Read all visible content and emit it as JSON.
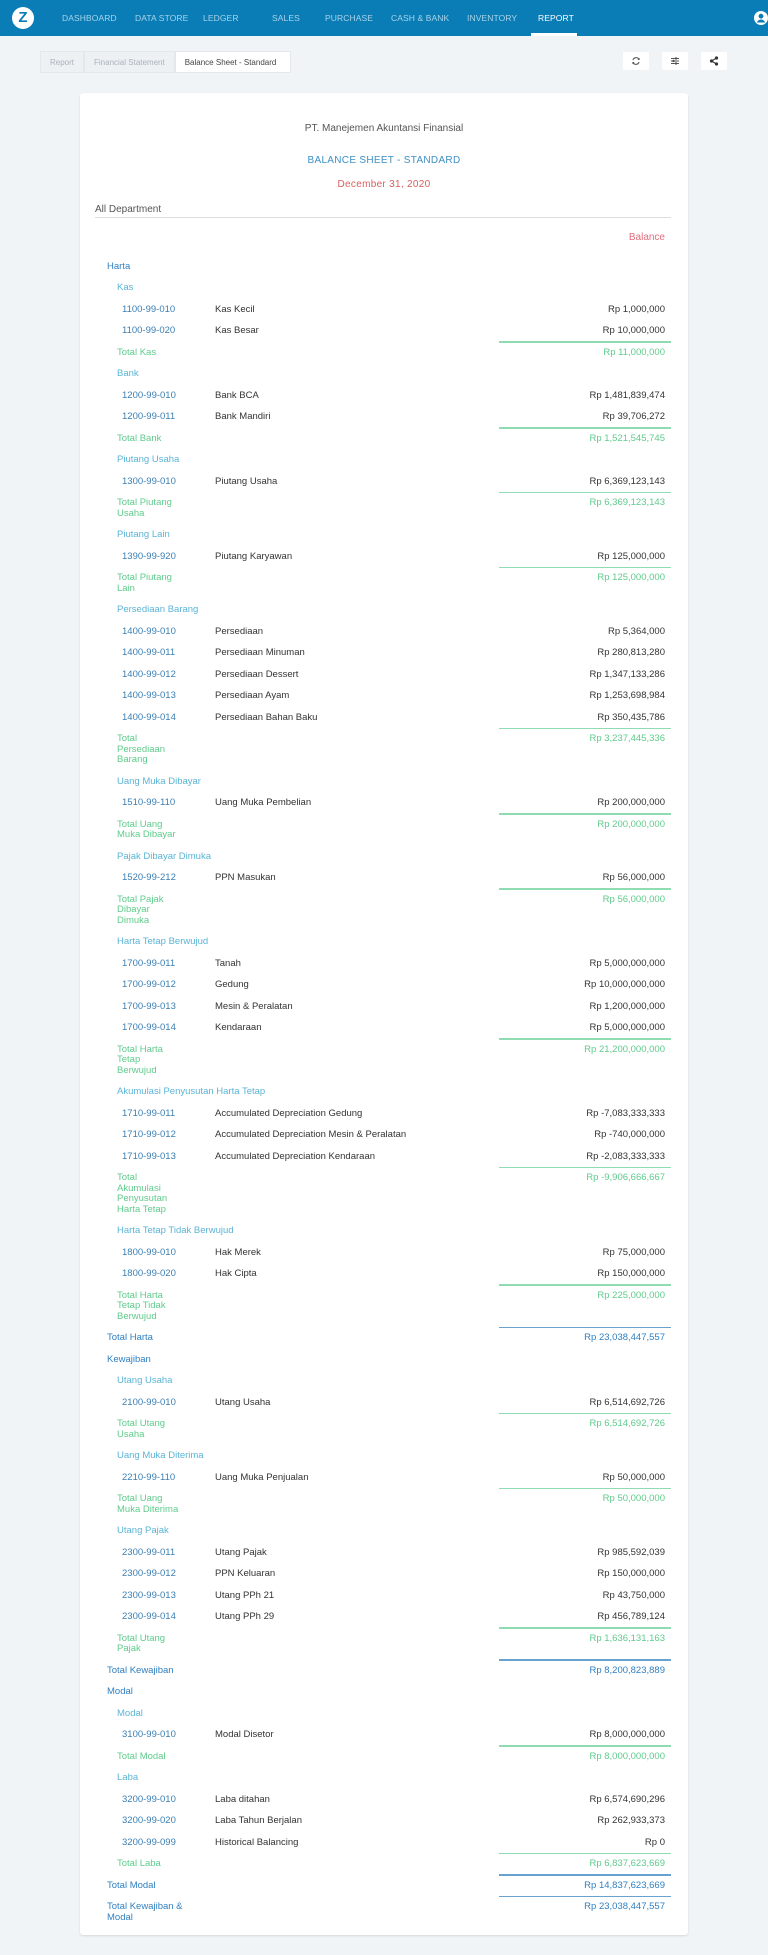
{
  "nav": {
    "logo": "Z",
    "items": [
      "DASHBOARD",
      "DATA STORE",
      "LEDGER",
      "SALES",
      "PURCHASE",
      "CASH & BANK",
      "INVENTORY",
      "REPORT"
    ],
    "active": "REPORT"
  },
  "breadcrumb": [
    "Report",
    "Financial Statement",
    "Balance Sheet - Standard"
  ],
  "toolbar": {
    "refresh_icon": "refresh-icon",
    "filter_icon": "filter-sliders-icon",
    "share_icon": "share-icon"
  },
  "report": {
    "company": "PT. Manejemen Akuntansi Finansial",
    "title": "BALANCE SHEET - STANDARD",
    "date": "December 31, 2020",
    "department": "All Department",
    "column_header": "Balance"
  },
  "colors": {
    "header": "#0a7db6",
    "group": "#2f7fc1",
    "subgroup": "#5ab4d6",
    "subtotal": "#5fcb8c",
    "date": "#d9605f"
  },
  "rows": [
    {
      "t": "g1",
      "label": "Harta"
    },
    {
      "t": "g2",
      "label": "Kas"
    },
    {
      "t": "it",
      "code": "1100-99-010",
      "name": "Kas Kecil",
      "amount": "Rp 1,000,000"
    },
    {
      "t": "it",
      "code": "1100-99-020",
      "name": "Kas Besar",
      "amount": "Rp 10,000,000"
    },
    {
      "t": "st",
      "label": "Total Kas",
      "amount": "Rp 11,000,000"
    },
    {
      "t": "g2",
      "label": "Bank"
    },
    {
      "t": "it",
      "code": "1200-99-010",
      "name": "Bank BCA",
      "amount": "Rp 1,481,839,474"
    },
    {
      "t": "it",
      "code": "1200-99-011",
      "name": "Bank Mandiri",
      "amount": "Rp 39,706,272"
    },
    {
      "t": "st",
      "label": "Total Bank",
      "amount": "Rp 1,521,545,745"
    },
    {
      "t": "g2",
      "label": "Piutang Usaha"
    },
    {
      "t": "it",
      "code": "1300-99-010",
      "name": "Piutang Usaha",
      "amount": "Rp 6,369,123,143"
    },
    {
      "t": "st",
      "label": "Total Piutang Usaha",
      "amount": "Rp 6,369,123,143"
    },
    {
      "t": "g2",
      "label": "Piutang Lain"
    },
    {
      "t": "it",
      "code": "1390-99-920",
      "name": "Piutang Karyawan",
      "amount": "Rp 125,000,000"
    },
    {
      "t": "st",
      "label": "Total Piutang Lain",
      "amount": "Rp 125,000,000"
    },
    {
      "t": "g2",
      "label": "Persediaan Barang"
    },
    {
      "t": "it",
      "code": "1400-99-010",
      "name": "Persediaan",
      "amount": "Rp 5,364,000"
    },
    {
      "t": "it",
      "code": "1400-99-011",
      "name": "Persediaan Minuman",
      "amount": "Rp 280,813,280"
    },
    {
      "t": "it",
      "code": "1400-99-012",
      "name": "Persediaan Dessert",
      "amount": "Rp 1,347,133,286"
    },
    {
      "t": "it",
      "code": "1400-99-013",
      "name": "Persediaan Ayam",
      "amount": "Rp 1,253,698,984"
    },
    {
      "t": "it",
      "code": "1400-99-014",
      "name": "Persediaan Bahan Baku",
      "amount": "Rp 350,435,786"
    },
    {
      "t": "st",
      "label": "Total Persediaan Barang",
      "amount": "Rp 3,237,445,336"
    },
    {
      "t": "g2",
      "label": "Uang Muka Dibayar"
    },
    {
      "t": "it",
      "code": "1510-99-110",
      "name": "Uang Muka Pembelian",
      "amount": "Rp 200,000,000"
    },
    {
      "t": "st",
      "label": "Total Uang Muka Dibayar",
      "amount": "Rp 200,000,000"
    },
    {
      "t": "g2",
      "label": "Pajak Dibayar Dimuka"
    },
    {
      "t": "it",
      "code": "1520-99-212",
      "name": "PPN Masukan",
      "amount": "Rp 56,000,000"
    },
    {
      "t": "st",
      "label": "Total Pajak Dibayar Dimuka",
      "amount": "Rp 56,000,000"
    },
    {
      "t": "g2",
      "label": "Harta Tetap Berwujud"
    },
    {
      "t": "it",
      "code": "1700-99-011",
      "name": "Tanah",
      "amount": "Rp 5,000,000,000"
    },
    {
      "t": "it",
      "code": "1700-99-012",
      "name": "Gedung",
      "amount": "Rp 10,000,000,000"
    },
    {
      "t": "it",
      "code": "1700-99-013",
      "name": "Mesin & Peralatan",
      "amount": "Rp 1,200,000,000"
    },
    {
      "t": "it",
      "code": "1700-99-014",
      "name": "Kendaraan",
      "amount": "Rp 5,000,000,000"
    },
    {
      "t": "st",
      "label": "Total Harta Tetap Berwujud",
      "amount": "Rp 21,200,000,000"
    },
    {
      "t": "g2",
      "label": "Akumulasi Penyusutan Harta Tetap"
    },
    {
      "t": "it",
      "code": "1710-99-011",
      "name": "Accumulated Depreciation Gedung",
      "amount": "Rp -7,083,333,333"
    },
    {
      "t": "it",
      "code": "1710-99-012",
      "name": "Accumulated Depreciation Mesin & Peralatan",
      "amount": "Rp -740,000,000"
    },
    {
      "t": "it",
      "code": "1710-99-013",
      "name": "Accumulated Depreciation Kendaraan",
      "amount": "Rp -2,083,333,333"
    },
    {
      "t": "st",
      "label": "Total Akumulasi Penyusutan Harta Tetap",
      "amount": "Rp -9,906,666,667"
    },
    {
      "t": "g2",
      "label": "Harta Tetap Tidak Berwujud"
    },
    {
      "t": "it",
      "code": "1800-99-010",
      "name": "Hak Merek",
      "amount": "Rp 75,000,000"
    },
    {
      "t": "it",
      "code": "1800-99-020",
      "name": "Hak Cipta",
      "amount": "Rp 150,000,000"
    },
    {
      "t": "st",
      "label": "Total Harta Tetap Tidak Berwujud",
      "amount": "Rp 225,000,000"
    },
    {
      "t": "t1",
      "label": "Total Harta",
      "amount": "Rp 23,038,447,557"
    },
    {
      "t": "g1",
      "label": "Kewajiban"
    },
    {
      "t": "g2",
      "label": "Utang Usaha"
    },
    {
      "t": "it",
      "code": "2100-99-010",
      "name": "Utang Usaha",
      "amount": "Rp 6,514,692,726"
    },
    {
      "t": "st",
      "label": "Total Utang Usaha",
      "amount": "Rp 6,514,692,726"
    },
    {
      "t": "g2",
      "label": "Uang Muka Diterima"
    },
    {
      "t": "it",
      "code": "2210-99-110",
      "name": "Uang Muka Penjualan",
      "amount": "Rp 50,000,000"
    },
    {
      "t": "st",
      "label": "Total Uang Muka Diterima",
      "amount": "Rp 50,000,000"
    },
    {
      "t": "g2",
      "label": "Utang Pajak"
    },
    {
      "t": "it",
      "code": "2300-99-011",
      "name": "Utang Pajak",
      "amount": "Rp 985,592,039"
    },
    {
      "t": "it",
      "code": "2300-99-012",
      "name": "PPN Keluaran",
      "amount": "Rp 150,000,000"
    },
    {
      "t": "it",
      "code": "2300-99-013",
      "name": "Utang PPh 21",
      "amount": "Rp 43,750,000"
    },
    {
      "t": "it",
      "code": "2300-99-014",
      "name": "Utang PPh 29",
      "amount": "Rp 456,789,124"
    },
    {
      "t": "st",
      "label": "Total Utang Pajak",
      "amount": "Rp 1,636,131,163"
    },
    {
      "t": "t1",
      "label": "Total Kewajiban",
      "amount": "Rp 8,200,823,889"
    },
    {
      "t": "g1",
      "label": "Modal"
    },
    {
      "t": "g2",
      "label": "Modal"
    },
    {
      "t": "it",
      "code": "3100-99-010",
      "name": "Modal Disetor",
      "amount": "Rp 8,000,000,000"
    },
    {
      "t": "st",
      "label": "Total Modal",
      "amount": "Rp 8,000,000,000"
    },
    {
      "t": "g2",
      "label": "Laba"
    },
    {
      "t": "it",
      "code": "3200-99-010",
      "name": "Laba ditahan",
      "amount": "Rp 6,574,690,296"
    },
    {
      "t": "it",
      "code": "3200-99-020",
      "name": "Laba Tahun Berjalan",
      "amount": "Rp 262,933,373"
    },
    {
      "t": "it",
      "code": "3200-99-099",
      "name": "Historical Balancing",
      "amount": "Rp 0"
    },
    {
      "t": "st",
      "label": "Total Laba",
      "amount": "Rp 6,837,623,669"
    },
    {
      "t": "t1",
      "label": "Total Modal",
      "amount": "Rp 14,837,623,669"
    },
    {
      "t": "t1",
      "label": "Total Kewajiban & Modal",
      "amount": "Rp 23,038,447,557"
    }
  ]
}
